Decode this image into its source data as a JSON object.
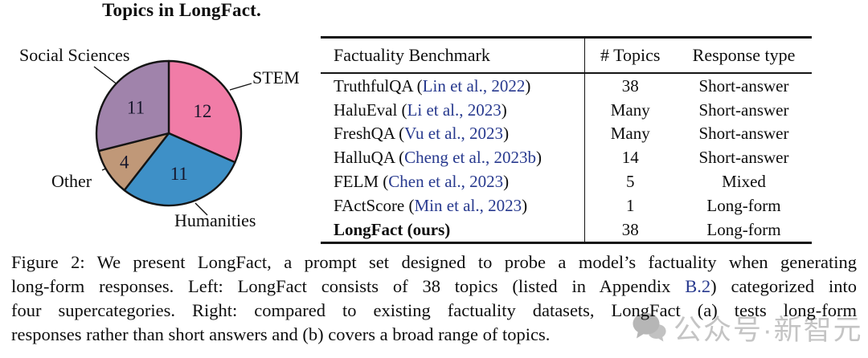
{
  "chart_data": [
    {
      "type": "pie",
      "title": "Topics in LongFact.",
      "categories": [
        "STEM",
        "Humanities",
        "Other",
        "Social Sciences"
      ],
      "values": [
        12,
        11,
        4,
        11
      ],
      "colors": [
        "#F17CA7",
        "#3E90C7",
        "#C09878",
        "#A083AB"
      ],
      "total": 38,
      "start_angle_deg": -90,
      "direction": "clockwise",
      "value_labels_inside": true
    },
    {
      "type": "table",
      "columns": [
        "Factuality Benchmark",
        "# Topics",
        "Response type"
      ],
      "rows": [
        [
          "TruthfulQA (Lin et al., 2022)",
          "38",
          "Short-answer"
        ],
        [
          "HaluEval (Li et al., 2023)",
          "Many",
          "Short-answer"
        ],
        [
          "FreshQA (Vu et al., 2023)",
          "Many",
          "Short-answer"
        ],
        [
          "HalluQA (Cheng et al., 2023b)",
          "14",
          "Short-answer"
        ],
        [
          "FELM (Chen et al., 2023)",
          "5",
          "Mixed"
        ],
        [
          "FActScore (Min et al., 2023)",
          "1",
          "Long-form"
        ],
        [
          "LongFact (ours)",
          "38",
          "Long-form"
        ]
      ]
    }
  ],
  "figure": {
    "table": {
      "headers": [
        "Factuality Benchmark",
        "# Topics",
        "Response type"
      ],
      "link_color": "#27398e",
      "rows": [
        {
          "name": "TruthfulQA",
          "citation": "Lin et al., 2022",
          "topics": "38",
          "response": "Short-answer",
          "bold": false
        },
        {
          "name": "HaluEval",
          "citation": "Li et al., 2023",
          "topics": "Many",
          "response": "Short-answer",
          "bold": false
        },
        {
          "name": "FreshQA",
          "citation": "Vu et al., 2023",
          "topics": "Many",
          "response": "Short-answer",
          "bold": false
        },
        {
          "name": "HalluQA",
          "citation": "Cheng et al., 2023b",
          "topics": "14",
          "response": "Short-answer",
          "bold": false
        },
        {
          "name": "FELM",
          "citation": "Chen et al., 2023",
          "topics": "5",
          "response": "Mixed",
          "bold": false
        },
        {
          "name": "FActScore",
          "citation": "Min et al., 2023",
          "topics": "1",
          "response": "Long-form",
          "bold": false
        },
        {
          "name": "LongFact (ours)",
          "citation": null,
          "topics": "38",
          "response": "Long-form",
          "bold": true
        }
      ]
    },
    "caption": {
      "line1": "Figure 2: We present LongFact, a prompt set designed to probe a model’s factuality when generating",
      "line2_pre": "long-form responses. Left: LongFact consists of 38 topics (listed in Appendix ",
      "line2_link": "B.2",
      "line2_post": ") categorized into",
      "line3": "four supercategories. Right: compared to existing factuality datasets, LongFact (a) tests long-form",
      "line4": "responses rather than short answers and (b) covers a broad range of topics."
    },
    "watermark": {
      "text": "公众号·新智元",
      "icon": "chat-bubbles-icon",
      "color": "#aeaeae"
    }
  }
}
